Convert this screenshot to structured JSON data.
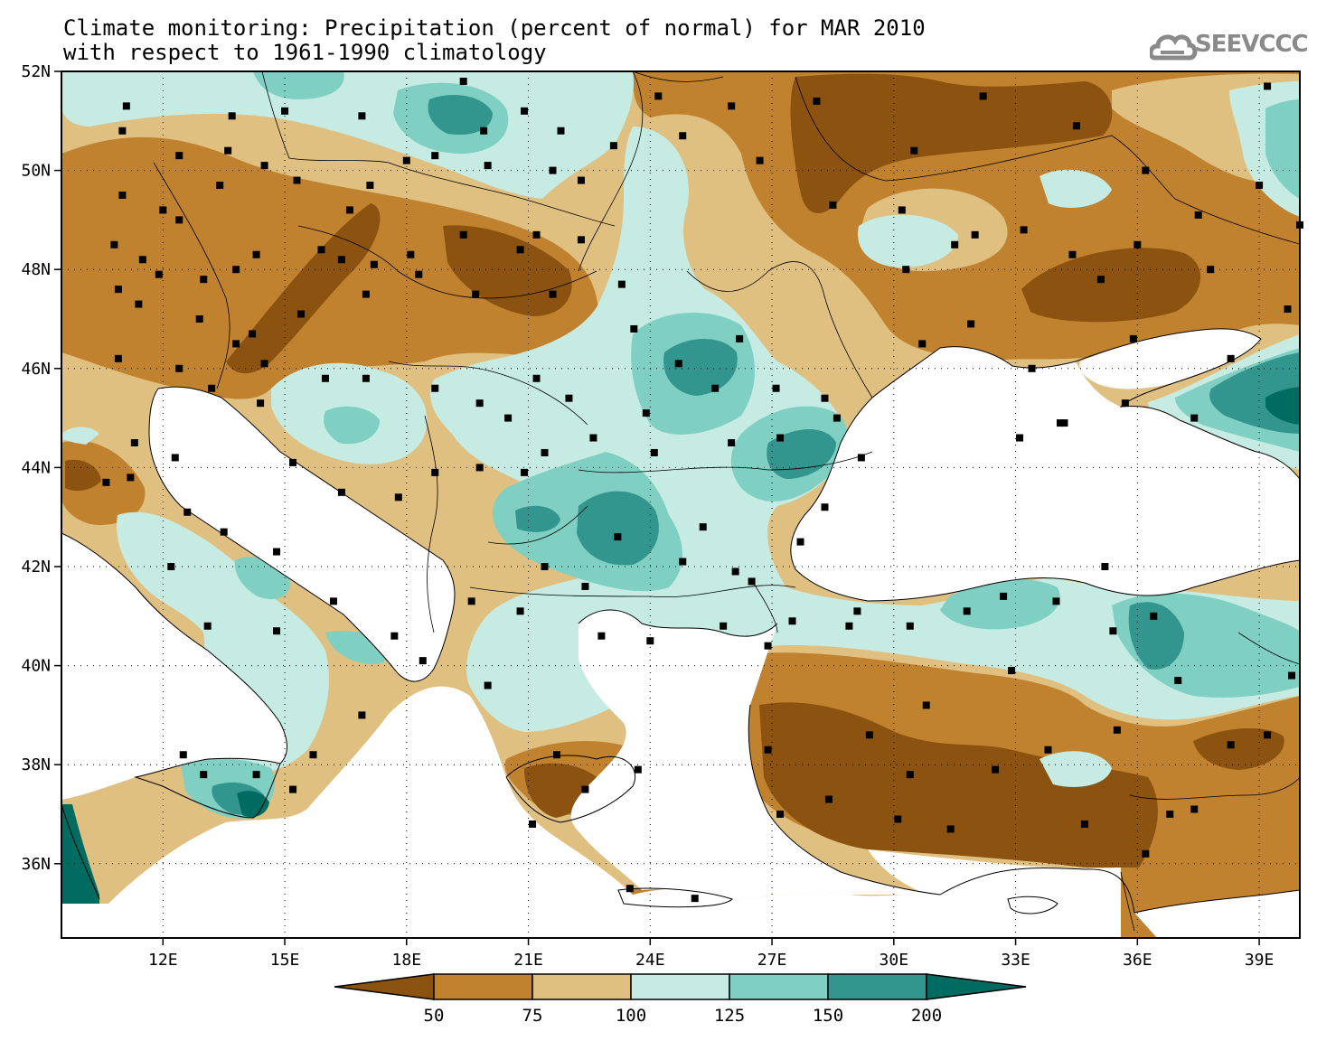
{
  "title_line1": "Climate monitoring: Precipitation (percent of normal) for MAR 2010",
  "title_line2": "with respect to 1961-1990 climatology",
  "logo": {
    "text": "SEEVCCC",
    "icon": "cloud-icon",
    "color": "#8a8a8a"
  },
  "axes": {
    "lon_range": [
      9.5,
      40
    ],
    "lat_range": [
      34.5,
      52
    ],
    "lon_ticks": [
      "12E",
      "15E",
      "18E",
      "21E",
      "24E",
      "27E",
      "30E",
      "33E",
      "36E",
      "39E"
    ],
    "lon_tick_values": [
      12,
      15,
      18,
      21,
      24,
      27,
      30,
      33,
      36,
      39
    ],
    "lat_ticks": [
      "52N",
      "50N",
      "48N",
      "46N",
      "44N",
      "42N",
      "40N",
      "38N",
      "36N"
    ],
    "lat_tick_values": [
      52,
      50,
      48,
      46,
      44,
      42,
      40,
      38,
      36
    ],
    "grid": "dotted"
  },
  "colorbar": {
    "labels": [
      "50",
      "75",
      "100",
      "125",
      "150",
      "200"
    ],
    "colors": [
      "#8b5210",
      "#c0822e",
      "#e0c081",
      "#c6ebe3",
      "#7fcfc3",
      "#33968e",
      "#006b61"
    ]
  },
  "chart_data": {
    "type": "heatmap",
    "variable": "Precipitation (percent of normal)",
    "period": "MAR 2010",
    "reference": "1961-1990 climatology",
    "classes": [
      {
        "range": "<50",
        "color": "#8b5210"
      },
      {
        "range": "50-75",
        "color": "#c0822e"
      },
      {
        "range": "75-100",
        "color": "#e0c081"
      },
      {
        "range": "100-125",
        "color": "#c6ebe3"
      },
      {
        "range": "125-150",
        "color": "#7fcfc3"
      },
      {
        "range": "150-200",
        "color": "#33968e"
      },
      {
        "range": ">200",
        "color": "#006b61"
      }
    ],
    "stations": [
      [
        11.1,
        51.3
      ],
      [
        11.0,
        50.8
      ],
      [
        13.7,
        51.1
      ],
      [
        15.0,
        51.2
      ],
      [
        16.9,
        51.1
      ],
      [
        19.4,
        51.8
      ],
      [
        20.9,
        51.2
      ],
      [
        21.8,
        50.8
      ],
      [
        22.3,
        49.8
      ],
      [
        21.6,
        50.0
      ],
      [
        20.0,
        50.1
      ],
      [
        19.9,
        50.8
      ],
      [
        18.7,
        50.3
      ],
      [
        18.0,
        50.2
      ],
      [
        17.1,
        49.7
      ],
      [
        16.6,
        49.2
      ],
      [
        15.3,
        49.8
      ],
      [
        14.5,
        50.1
      ],
      [
        13.6,
        50.4
      ],
      [
        12.4,
        50.3
      ],
      [
        11.0,
        49.5
      ],
      [
        10.8,
        48.5
      ],
      [
        11.5,
        48.2
      ],
      [
        12.4,
        49.0
      ],
      [
        13.4,
        49.7
      ],
      [
        12.0,
        49.2
      ],
      [
        10.9,
        47.6
      ],
      [
        11.9,
        47.9
      ],
      [
        13.0,
        47.8
      ],
      [
        13.8,
        48.0
      ],
      [
        14.3,
        48.3
      ],
      [
        15.9,
        48.4
      ],
      [
        16.4,
        48.2
      ],
      [
        17.2,
        48.1
      ],
      [
        18.1,
        48.3
      ],
      [
        19.4,
        48.7
      ],
      [
        20.8,
        48.4
      ],
      [
        21.2,
        48.7
      ],
      [
        22.3,
        48.6
      ],
      [
        23.3,
        47.7
      ],
      [
        21.6,
        47.5
      ],
      [
        19.7,
        47.5
      ],
      [
        18.3,
        47.9
      ],
      [
        17.0,
        47.5
      ],
      [
        15.4,
        47.1
      ],
      [
        14.2,
        46.7
      ],
      [
        12.9,
        47.0
      ],
      [
        11.4,
        47.3
      ],
      [
        10.9,
        46.2
      ],
      [
        12.4,
        46.0
      ],
      [
        13.8,
        46.5
      ],
      [
        14.5,
        46.1
      ],
      [
        16.0,
        45.8
      ],
      [
        17.0,
        45.8
      ],
      [
        18.7,
        45.6
      ],
      [
        19.8,
        45.3
      ],
      [
        21.2,
        45.8
      ],
      [
        20.5,
        45.0
      ],
      [
        22.0,
        45.4
      ],
      [
        23.6,
        46.8
      ],
      [
        24.7,
        46.1
      ],
      [
        26.2,
        46.6
      ],
      [
        25.6,
        45.6
      ],
      [
        27.1,
        45.6
      ],
      [
        28.3,
        45.4
      ],
      [
        27.2,
        44.6
      ],
      [
        26.0,
        44.5
      ],
      [
        24.1,
        44.3
      ],
      [
        23.9,
        45.1
      ],
      [
        22.6,
        44.6
      ],
      [
        21.4,
        44.3
      ],
      [
        20.9,
        43.9
      ],
      [
        19.8,
        44.0
      ],
      [
        18.7,
        43.9
      ],
      [
        17.8,
        43.4
      ],
      [
        16.4,
        43.5
      ],
      [
        15.2,
        44.1
      ],
      [
        14.4,
        45.3
      ],
      [
        13.2,
        45.6
      ],
      [
        12.3,
        44.2
      ],
      [
        11.3,
        44.5
      ],
      [
        10.6,
        43.7
      ],
      [
        11.2,
        43.8
      ],
      [
        12.6,
        43.1
      ],
      [
        13.5,
        42.7
      ],
      [
        14.8,
        42.3
      ],
      [
        16.2,
        41.3
      ],
      [
        17.7,
        40.6
      ],
      [
        18.4,
        40.1
      ],
      [
        16.9,
        39.0
      ],
      [
        15.7,
        38.2
      ],
      [
        15.2,
        37.5
      ],
      [
        14.3,
        37.8
      ],
      [
        13.0,
        37.8
      ],
      [
        12.5,
        38.2
      ],
      [
        13.1,
        40.8
      ],
      [
        14.8,
        40.7
      ],
      [
        12.2,
        42.0
      ],
      [
        19.6,
        41.3
      ],
      [
        20.8,
        41.1
      ],
      [
        21.4,
        42.0
      ],
      [
        22.4,
        41.6
      ],
      [
        23.2,
        42.6
      ],
      [
        24.8,
        42.1
      ],
      [
        25.3,
        42.8
      ],
      [
        26.1,
        41.9
      ],
      [
        27.7,
        42.5
      ],
      [
        28.3,
        43.2
      ],
      [
        29.2,
        44.2
      ],
      [
        28.6,
        45.0
      ],
      [
        30.7,
        46.5
      ],
      [
        31.9,
        46.9
      ],
      [
        33.4,
        46.0
      ],
      [
        34.1,
        44.9
      ],
      [
        35.7,
        45.3
      ],
      [
        37.4,
        45.0
      ],
      [
        38.3,
        46.2
      ],
      [
        39.7,
        47.2
      ],
      [
        40.0,
        48.9
      ],
      [
        37.8,
        48.0
      ],
      [
        36.0,
        48.5
      ],
      [
        34.4,
        48.3
      ],
      [
        32.0,
        48.7
      ],
      [
        30.2,
        49.2
      ],
      [
        28.5,
        49.3
      ],
      [
        26.7,
        50.2
      ],
      [
        24.8,
        50.7
      ],
      [
        23.1,
        50.5
      ],
      [
        24.2,
        51.5
      ],
      [
        26.0,
        51.3
      ],
      [
        28.1,
        51.4
      ],
      [
        30.5,
        50.4
      ],
      [
        32.2,
        51.5
      ],
      [
        34.5,
        50.9
      ],
      [
        36.2,
        50.0
      ],
      [
        37.5,
        49.1
      ],
      [
        39.2,
        51.7
      ],
      [
        39.0,
        49.7
      ],
      [
        30.3,
        48.0
      ],
      [
        31.5,
        48.5
      ],
      [
        33.2,
        48.8
      ],
      [
        35.1,
        47.8
      ],
      [
        35.9,
        46.6
      ],
      [
        33.1,
        44.6
      ],
      [
        34.2,
        44.9
      ],
      [
        30.8,
        39.2
      ],
      [
        32.9,
        39.9
      ],
      [
        29.1,
        41.1
      ],
      [
        28.9,
        40.8
      ],
      [
        27.5,
        40.9
      ],
      [
        26.9,
        40.4
      ],
      [
        26.5,
        41.7
      ],
      [
        25.8,
        40.8
      ],
      [
        24.0,
        40.5
      ],
      [
        22.8,
        40.6
      ],
      [
        20.0,
        39.6
      ],
      [
        21.7,
        38.2
      ],
      [
        22.4,
        37.5
      ],
      [
        21.1,
        36.8
      ],
      [
        23.7,
        37.9
      ],
      [
        25.1,
        35.3
      ],
      [
        23.5,
        35.5
      ],
      [
        26.9,
        38.3
      ],
      [
        28.4,
        37.3
      ],
      [
        27.2,
        37.0
      ],
      [
        30.4,
        37.8
      ],
      [
        32.5,
        37.9
      ],
      [
        33.8,
        38.3
      ],
      [
        35.5,
        38.7
      ],
      [
        36.8,
        37.0
      ],
      [
        37.4,
        37.1
      ],
      [
        38.3,
        38.4
      ],
      [
        39.2,
        38.6
      ],
      [
        39.8,
        39.8
      ],
      [
        37.0,
        39.7
      ],
      [
        35.4,
        40.7
      ],
      [
        36.4,
        41.0
      ],
      [
        34.0,
        41.3
      ],
      [
        32.7,
        41.4
      ],
      [
        31.8,
        41.1
      ],
      [
        30.4,
        40.8
      ],
      [
        29.4,
        38.6
      ],
      [
        30.1,
        36.9
      ],
      [
        31.4,
        36.7
      ],
      [
        34.7,
        36.8
      ],
      [
        36.2,
        36.2
      ],
      [
        35.2,
        42.0
      ]
    ]
  }
}
